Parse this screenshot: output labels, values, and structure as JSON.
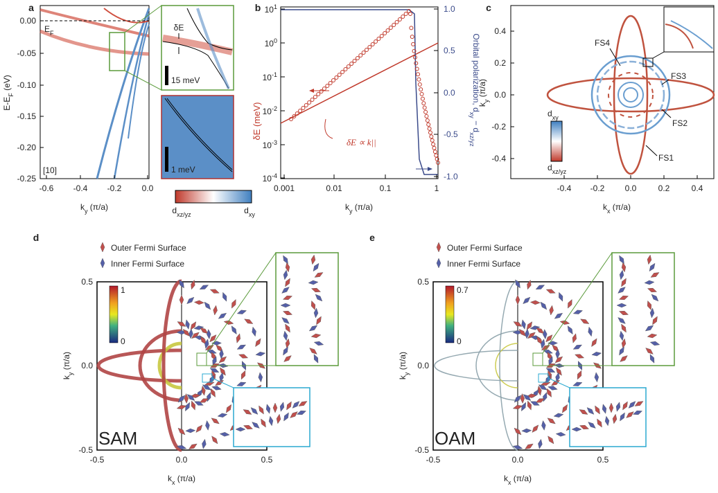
{
  "panels": {
    "a": {
      "label": "a",
      "x_ticks": [
        "-0.6",
        "-0.4",
        "-0.2",
        "0.0"
      ],
      "y_ticks": [
        "0.00",
        "-0.05",
        "-0.10",
        "-0.15",
        "-0.20",
        "-0.25"
      ],
      "y_label": {
        "main": "E-E",
        "sub": "F",
        "unit": " (eV)"
      },
      "x_label": {
        "main": "k",
        "sub": "y",
        "unit": " (π/a)"
      },
      "fermi_label": {
        "main": "E",
        "sub": "F"
      },
      "direction": "[10]",
      "inset_gap": "δE",
      "inset_scale_1": "15 meV",
      "inset_scale_2": "1 meV",
      "colorbar": [
        {
          "main": "d",
          "sub": "xz/yz"
        },
        {
          "main": "d",
          "sub": "xy"
        }
      ]
    },
    "b": {
      "label": "b",
      "x_ticks": [
        "0.001",
        "0.01",
        "0.1",
        "1"
      ],
      "y_ticks": [
        {
          "base": "10",
          "exp": "1"
        },
        {
          "base": "10",
          "exp": "0"
        },
        {
          "base": "10",
          "exp": "-1"
        },
        {
          "base": "10",
          "exp": "-2"
        },
        {
          "base": "10",
          "exp": "-3"
        },
        {
          "base": "10",
          "exp": "-4"
        }
      ],
      "y2_ticks": [
        "1.0",
        "0.5",
        "0.0",
        "-0.5",
        "-1.0"
      ],
      "x_label": {
        "main": "k",
        "sub": "y",
        "unit": " (π/a)"
      },
      "y_label": "δE (meV)",
      "y2_label": {
        "main": "Orbital polarization, d",
        "sub": "xy",
        "unit": " − d",
        "sub2": "xz/yz"
      },
      "annotation": "δE ∝ k||"
    },
    "c": {
      "label": "c",
      "x_ticks": [
        "-0.4",
        "-0.2",
        "0.0",
        "0.2",
        "0.4"
      ],
      "y_ticks": [
        "0.4",
        "0.2",
        "0.0",
        "-0.2",
        "-0.4"
      ],
      "x_label": {
        "main": "k",
        "sub": "x",
        "unit": " (π/a)"
      },
      "y_label": {
        "main": "k",
        "sub": "y",
        "unit": " (π/a)"
      },
      "surfaces": [
        "FS1",
        "FS2",
        "FS3",
        "FS4"
      ],
      "colorbar": [
        {
          "main": "d",
          "sub": "xy"
        },
        {
          "main": "d",
          "sub": "xz/yz"
        }
      ]
    },
    "d": {
      "label": "d",
      "legend": [
        "Outer Fermi Surface",
        "Inner Fermi Surface"
      ],
      "x_ticks": [
        "-0.5",
        "0.0",
        "0.5"
      ],
      "y_ticks": [
        "0.5",
        "0.0",
        "-0.5"
      ],
      "x_label": {
        "main": "k",
        "sub": "x",
        "unit": " (π/a)"
      },
      "y_label": {
        "main": "k",
        "sub": "y",
        "unit": " (π/a)"
      },
      "colorbar": [
        "1",
        "0"
      ],
      "tag": "SAM"
    },
    "e": {
      "label": "e",
      "legend": [
        "Outer Fermi Surface",
        "Inner Fermi Surface"
      ],
      "x_ticks": [
        "-0.5",
        "0.0",
        "0.5"
      ],
      "y_ticks": [
        "0.5",
        "0.0",
        "-0.5"
      ],
      "x_label": {
        "main": "k",
        "sub": "x",
        "unit": " (π/a)"
      },
      "y_label": {
        "main": "k",
        "sub": "y",
        "unit": " (π/a)"
      },
      "colorbar": [
        "0.7",
        "0"
      ],
      "tag": "OAM"
    }
  }
}
